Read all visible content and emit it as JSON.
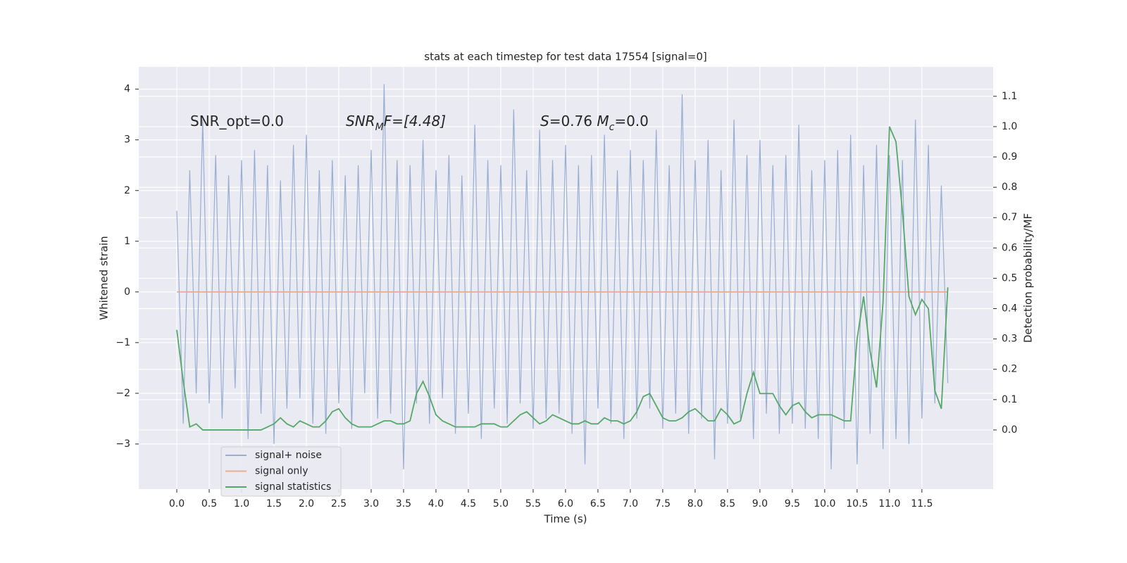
{
  "chart_data": {
    "type": "line",
    "title": "stats at each timestep for test data 17554 [signal=0]",
    "xlabel": "Time (s)",
    "ylabel": "Whitened strain",
    "y2label": "Detection probability/MF",
    "annotations": [
      {
        "parts": [
          "SNR_opt=0.0"
        ]
      },
      {
        "parts": [
          "SNR",
          "M",
          "F=[4.48]"
        ]
      },
      {
        "parts": [
          "S",
          "=0.76   ",
          "M",
          "c",
          "=0.0"
        ]
      }
    ],
    "grid": true,
    "legend": "lower left",
    "xlim": [
      -0.587,
      12.6
    ],
    "ylim": [
      -3.89,
      4.44
    ],
    "y2lim": [
      -0.195,
      1.197
    ],
    "xticks": [
      {
        "value": 0,
        "label": "0.0"
      },
      {
        "value": 0.5,
        "label": "0.5"
      },
      {
        "value": 1,
        "label": "1.0"
      },
      {
        "value": 1.5,
        "label": "1.5"
      },
      {
        "value": 2,
        "label": "2.0"
      },
      {
        "value": 2.5,
        "label": "2.5"
      },
      {
        "value": 3,
        "label": "3.0"
      },
      {
        "value": 3.5,
        "label": "3.5"
      },
      {
        "value": 4,
        "label": "4.0"
      },
      {
        "value": 4.5,
        "label": "4.5"
      },
      {
        "value": 5,
        "label": "5.0"
      },
      {
        "value": 5.5,
        "label": "5.5"
      },
      {
        "value": 6,
        "label": "6.0"
      },
      {
        "value": 6.5,
        "label": "6.5"
      },
      {
        "value": 7,
        "label": "7.0"
      },
      {
        "value": 7.5,
        "label": "7.5"
      },
      {
        "value": 8,
        "label": "8.0"
      },
      {
        "value": 8.5,
        "label": "8.5"
      },
      {
        "value": 9,
        "label": "9.0"
      },
      {
        "value": 9.5,
        "label": "9.5"
      },
      {
        "value": 10,
        "label": "10.0"
      },
      {
        "value": 10.5,
        "label": "10.5"
      },
      {
        "value": 11,
        "label": "11.0"
      },
      {
        "value": 11.5,
        "label": "11.5"
      }
    ],
    "yticks": [
      {
        "value": -3,
        "label": "−3"
      },
      {
        "value": -2,
        "label": "−2"
      },
      {
        "value": -1,
        "label": "−1"
      },
      0,
      1,
      2,
      3,
      4
    ],
    "y2ticks": [
      {
        "value": 0,
        "label": "0.0"
      },
      {
        "value": 0.1,
        "label": "0.1"
      },
      {
        "value": 0.2,
        "label": "0.2"
      },
      {
        "value": 0.3,
        "label": "0.3"
      },
      {
        "value": 0.4,
        "label": "0.4"
      },
      {
        "value": 0.5,
        "label": "0.5"
      },
      {
        "value": 0.6,
        "label": "0.6"
      },
      {
        "value": 0.7,
        "label": "0.7"
      },
      {
        "value": 0.8,
        "label": "0.8"
      },
      {
        "value": 0.9,
        "label": "0.9"
      },
      {
        "value": 1,
        "label": "1.0"
      },
      {
        "value": 1.1,
        "label": "1.1"
      }
    ],
    "x": [
      0,
      0.1,
      0.2,
      0.3,
      0.4,
      0.5,
      0.6,
      0.7,
      0.8,
      0.9,
      1,
      1.1,
      1.2,
      1.3,
      1.4,
      1.5,
      1.6,
      1.7,
      1.8,
      1.9,
      2,
      2.1,
      2.2,
      2.3,
      2.4,
      2.5,
      2.6,
      2.7,
      2.8,
      2.9,
      3,
      3.1,
      3.2,
      3.3,
      3.4,
      3.5,
      3.6,
      3.7,
      3.8,
      3.9,
      4,
      4.1,
      4.2,
      4.3,
      4.4,
      4.5,
      4.6,
      4.7,
      4.8,
      4.9,
      5,
      5.1,
      5.2,
      5.3,
      5.4,
      5.5,
      5.6,
      5.7,
      5.8,
      5.9,
      6,
      6.1,
      6.2,
      6.3,
      6.4,
      6.5,
      6.6,
      6.7,
      6.8,
      6.9,
      7,
      7.1,
      7.2,
      7.3,
      7.4,
      7.5,
      7.6,
      7.7,
      7.8,
      7.9,
      8,
      8.1,
      8.2,
      8.3,
      8.4,
      8.5,
      8.6,
      8.7,
      8.8,
      8.9,
      9,
      9.1,
      9.2,
      9.3,
      9.4,
      9.5,
      9.6,
      9.7,
      9.8,
      9.9,
      10,
      10.1,
      10.2,
      10.3,
      10.4,
      10.5,
      10.6,
      10.7,
      10.8,
      10.9,
      11,
      11.1,
      11.2,
      11.3,
      11.4,
      11.5,
      11.6,
      11.7,
      11.8,
      11.9
    ],
    "series": [
      {
        "name": "signal+ noise",
        "color": "#99aed3",
        "values": [
          1.6,
          -2.6,
          2.4,
          -2.0,
          3.4,
          -2.2,
          2.7,
          -2.5,
          2.3,
          -1.9,
          2.6,
          -2.9,
          2.8,
          -2.4,
          2.5,
          -3.0,
          2.2,
          -2.3,
          2.9,
          -2.1,
          3.1,
          -2.6,
          2.4,
          -2.8,
          2.6,
          -2.2,
          2.3,
          -2.7,
          2.5,
          -2.0,
          2.8,
          -2.5,
          4.1,
          -2.4,
          2.6,
          -3.5,
          2.5,
          -2.2,
          3.0,
          -2.6,
          2.4,
          -2.1,
          2.7,
          -2.8,
          2.3,
          -2.4,
          3.3,
          -2.9,
          2.6,
          -2.3,
          2.5,
          -2.6,
          3.6,
          -2.2,
          2.4,
          -2.7,
          3.2,
          -2.5,
          2.6,
          -2.4,
          2.9,
          -2.8,
          2.5,
          -3.4,
          2.7,
          -2.3,
          3.1,
          -2.6,
          2.4,
          -2.9,
          2.8,
          -2.5,
          2.6,
          -2.3,
          3.2,
          -2.7,
          2.5,
          -2.4,
          3.9,
          -2.8,
          2.6,
          -2.5,
          3.0,
          -3.3,
          2.4,
          -2.6,
          3.4,
          -2.5,
          2.7,
          -2.9,
          3.0,
          -2.4,
          2.5,
          -2.8,
          2.7,
          -2.6,
          3.3,
          -2.7,
          2.4,
          -2.9,
          2.6,
          -3.5,
          2.8,
          -2.7,
          3.1,
          -3.4,
          2.5,
          -2.8,
          2.9,
          -3.1,
          2.7,
          -2.9,
          2.6,
          -3.0,
          3.4,
          -2.5,
          2.9,
          -2.2,
          2.1,
          -1.8
        ]
      },
      {
        "name": "signal only",
        "color": "#e9ad92",
        "values": [
          0,
          0,
          0,
          0,
          0,
          0,
          0,
          0,
          0,
          0,
          0,
          0,
          0,
          0,
          0,
          0,
          0,
          0,
          0,
          0,
          0,
          0,
          0,
          0,
          0,
          0,
          0,
          0,
          0,
          0,
          0,
          0,
          0,
          0,
          0,
          0,
          0,
          0,
          0,
          0,
          0,
          0,
          0,
          0,
          0,
          0,
          0,
          0,
          0,
          0,
          0,
          0,
          0,
          0,
          0,
          0,
          0,
          0,
          0,
          0,
          0,
          0,
          0,
          0,
          0,
          0,
          0,
          0,
          0,
          0,
          0,
          0,
          0,
          0,
          0,
          0,
          0,
          0,
          0,
          0,
          0,
          0,
          0,
          0,
          0,
          0,
          0,
          0,
          0,
          0,
          0,
          0,
          0,
          0,
          0,
          0,
          0,
          0,
          0,
          0,
          0,
          0,
          0,
          0,
          0,
          0,
          0,
          0,
          0,
          0,
          0,
          0,
          0,
          0,
          0,
          0,
          0,
          0,
          0,
          0
        ]
      },
      {
        "name": "signal statistics",
        "color": "#55a868",
        "axis": "y2",
        "values": [
          0.33,
          0.16,
          0.01,
          0.02,
          0,
          0,
          0,
          0,
          0,
          0,
          0,
          0,
          0,
          0,
          0.01,
          0.02,
          0.04,
          0.02,
          0.01,
          0.03,
          0.02,
          0.01,
          0.01,
          0.03,
          0.06,
          0.07,
          0.04,
          0.02,
          0.01,
          0.01,
          0.01,
          0.02,
          0.03,
          0.03,
          0.02,
          0.02,
          0.03,
          0.12,
          0.16,
          0.11,
          0.05,
          0.03,
          0.02,
          0.01,
          0.01,
          0.01,
          0.01,
          0.02,
          0.02,
          0.02,
          0.01,
          0.01,
          0.03,
          0.05,
          0.06,
          0.04,
          0.02,
          0.03,
          0.05,
          0.04,
          0.03,
          0.02,
          0.02,
          0.03,
          0.02,
          0.02,
          0.04,
          0.03,
          0.03,
          0.02,
          0.03,
          0.06,
          0.11,
          0.12,
          0.08,
          0.04,
          0.03,
          0.03,
          0.04,
          0.06,
          0.07,
          0.05,
          0.03,
          0.03,
          0.07,
          0.05,
          0.02,
          0.03,
          0.12,
          0.19,
          0.12,
          0.12,
          0.12,
          0.08,
          0.05,
          0.08,
          0.09,
          0.06,
          0.04,
          0.05,
          0.05,
          0.05,
          0.04,
          0.03,
          0.03,
          0.3,
          0.44,
          0.26,
          0.14,
          0.42,
          1.0,
          0.95,
          0.72,
          0.44,
          0.38,
          0.43,
          0.4,
          0.13,
          0.07,
          0.47
        ]
      }
    ]
  }
}
